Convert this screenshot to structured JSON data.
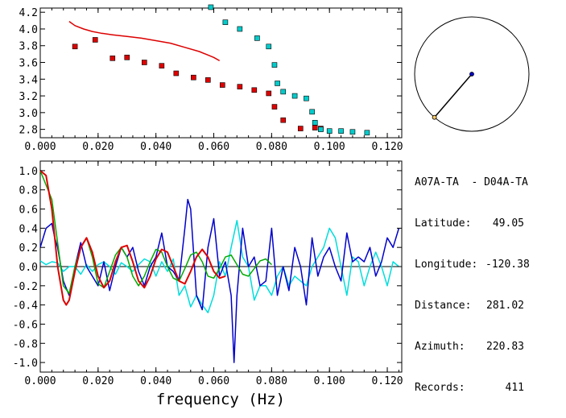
{
  "chart_data": [
    {
      "type": "scatter",
      "xlim": [
        0.0,
        0.125
      ],
      "ylim": [
        2.7,
        4.25
      ],
      "x_ticks": [
        "0.000",
        "0.020",
        "0.040",
        "0.060",
        "0.080",
        "0.100",
        "0.120"
      ],
      "x_tick_values": [
        0.0,
        0.02,
        0.04,
        0.06,
        0.08,
        0.1,
        0.12
      ],
      "y_ticks": [
        "2.8",
        "3.0",
        "3.2",
        "3.4",
        "3.6",
        "3.8",
        "4.0",
        "4.2"
      ],
      "y_tick_values": [
        2.8,
        3.0,
        3.2,
        3.4,
        3.6,
        3.8,
        4.0,
        4.2
      ],
      "series": [
        {
          "color": "#dd0000",
          "kind": "markers",
          "x": [
            0.012,
            0.019,
            0.025,
            0.03,
            0.036,
            0.042,
            0.047,
            0.053,
            0.058,
            0.063,
            0.069,
            0.074,
            0.079,
            0.081,
            0.084,
            0.09,
            0.095,
            0.097
          ],
          "y": [
            3.79,
            3.87,
            3.65,
            3.66,
            3.6,
            3.56,
            3.47,
            3.42,
            3.39,
            3.33,
            3.31,
            3.27,
            3.23,
            3.07,
            2.91,
            2.81,
            2.82,
            2.81
          ]
        },
        {
          "color": "#00cccc",
          "kind": "markers",
          "x": [
            0.059,
            0.064,
            0.069,
            0.075,
            0.079,
            0.081,
            0.082,
            0.084,
            0.088,
            0.092,
            0.094,
            0.095,
            0.097,
            0.1,
            0.104,
            0.108,
            0.113
          ],
          "y": [
            4.26,
            4.08,
            4.0,
            3.89,
            3.79,
            3.57,
            3.35,
            3.25,
            3.2,
            3.17,
            3.01,
            2.88,
            2.8,
            2.78,
            2.78,
            2.77,
            2.76
          ]
        },
        {
          "color": "#dd0000",
          "kind": "line",
          "x": [
            0.01,
            0.012,
            0.015,
            0.018,
            0.021,
            0.025,
            0.03,
            0.035,
            0.04,
            0.045,
            0.05,
            0.055,
            0.06,
            0.062
          ],
          "y": [
            4.09,
            4.04,
            4.0,
            3.97,
            3.95,
            3.93,
            3.91,
            3.89,
            3.86,
            3.83,
            3.78,
            3.73,
            3.66,
            3.62
          ]
        }
      ]
    },
    {
      "type": "line",
      "xlabel": "frequency (Hz)",
      "xlim": [
        0.0,
        0.125
      ],
      "ylim": [
        -1.1,
        1.1
      ],
      "x_ticks": [
        "0.000",
        "0.020",
        "0.040",
        "0.060",
        "0.080",
        "0.100",
        "0.120"
      ],
      "x_tick_values": [
        0.0,
        0.02,
        0.04,
        0.06,
        0.08,
        0.1,
        0.12
      ],
      "y_ticks": [
        "1.0",
        "0.8",
        "0.6",
        "0.4",
        "0.2",
        "0.0",
        "-0.2",
        "-0.4",
        "-0.6",
        "-0.8",
        "-1.0"
      ],
      "y_tick_values": [
        1.0,
        0.8,
        0.6,
        0.4,
        0.2,
        0.0,
        -0.2,
        -0.4,
        -0.6,
        -0.8,
        -1.0
      ],
      "series": [
        {
          "color": "#00dddd",
          "x": [
            0.0,
            0.002,
            0.004,
            0.006,
            0.008,
            0.01,
            0.012,
            0.014,
            0.016,
            0.018,
            0.02,
            0.022,
            0.024,
            0.026,
            0.028,
            0.03,
            0.032,
            0.034,
            0.036,
            0.038,
            0.04,
            0.042,
            0.044,
            0.046,
            0.048,
            0.05,
            0.052,
            0.054,
            0.056,
            0.058,
            0.06,
            0.062,
            0.064,
            0.066,
            0.068,
            0.07,
            0.072,
            0.074,
            0.076,
            0.078,
            0.08,
            0.082,
            0.084,
            0.086,
            0.088,
            0.09,
            0.092,
            0.094,
            0.096,
            0.098,
            0.1,
            0.102,
            0.104,
            0.106,
            0.108,
            0.11,
            0.112,
            0.114,
            0.116,
            0.118,
            0.12,
            0.122,
            0.124
          ],
          "y": [
            0.06,
            0.02,
            0.05,
            0.04,
            -0.05,
            0.0,
            0.0,
            -0.08,
            0.02,
            -0.05,
            0.02,
            0.05,
            0.0,
            -0.08,
            0.04,
            0.0,
            -0.05,
            0.02,
            0.08,
            0.05,
            -0.1,
            0.05,
            -0.05,
            0.08,
            -0.3,
            -0.2,
            -0.42,
            -0.3,
            -0.4,
            -0.48,
            -0.3,
            0.05,
            -0.1,
            0.2,
            0.48,
            0.1,
            0.0,
            -0.35,
            -0.2,
            -0.2,
            -0.3,
            -0.1,
            0.0,
            -0.2,
            -0.1,
            -0.15,
            -0.2,
            0.0,
            0.1,
            0.2,
            0.4,
            0.3,
            0.0,
            -0.3,
            0.1,
            0.05,
            -0.2,
            0.0,
            0.15,
            0.0,
            -0.2,
            0.05,
            0.0
          ]
        },
        {
          "color": "#0000cc",
          "x": [
            0.0,
            0.002,
            0.004,
            0.005,
            0.006,
            0.008,
            0.01,
            0.012,
            0.014,
            0.016,
            0.018,
            0.02,
            0.022,
            0.024,
            0.026,
            0.028,
            0.03,
            0.032,
            0.034,
            0.036,
            0.038,
            0.04,
            0.042,
            0.044,
            0.046,
            0.048,
            0.05,
            0.051,
            0.052,
            0.054,
            0.056,
            0.058,
            0.06,
            0.062,
            0.064,
            0.066,
            0.067,
            0.068,
            0.07,
            0.072,
            0.074,
            0.076,
            0.078,
            0.08,
            0.082,
            0.084,
            0.086,
            0.088,
            0.09,
            0.092,
            0.094,
            0.096,
            0.098,
            0.1,
            0.102,
            0.104,
            0.106,
            0.108,
            0.11,
            0.112,
            0.114,
            0.116,
            0.118,
            0.12,
            0.122,
            0.124
          ],
          "y": [
            0.2,
            0.4,
            0.45,
            0.3,
            0.2,
            -0.15,
            -0.3,
            0.0,
            0.25,
            0.0,
            -0.1,
            -0.2,
            0.05,
            -0.25,
            0.0,
            0.2,
            0.1,
            0.2,
            -0.05,
            -0.2,
            0.0,
            0.1,
            0.35,
            0.0,
            -0.05,
            -0.15,
            0.4,
            0.7,
            0.6,
            -0.3,
            -0.45,
            0.2,
            0.5,
            -0.1,
            0.05,
            -0.3,
            -1.0,
            -0.3,
            0.4,
            0.0,
            0.1,
            -0.2,
            -0.15,
            0.4,
            -0.3,
            0.0,
            -0.25,
            0.2,
            0.0,
            -0.4,
            0.3,
            -0.1,
            0.1,
            0.2,
            0.0,
            -0.15,
            0.35,
            0.05,
            0.1,
            0.05,
            0.2,
            -0.1,
            0.05,
            0.3,
            0.2,
            0.4
          ]
        },
        {
          "color": "#00aa00",
          "x": [
            0.0,
            0.004,
            0.008,
            0.01,
            0.012,
            0.014,
            0.016,
            0.018,
            0.02,
            0.022,
            0.024,
            0.026,
            0.028,
            0.03,
            0.032,
            0.034,
            0.036,
            0.038,
            0.04,
            0.042,
            0.044,
            0.046,
            0.048,
            0.05,
            0.052,
            0.054,
            0.056,
            0.058,
            0.06,
            0.062,
            0.064,
            0.066,
            0.068,
            0.07,
            0.072,
            0.074,
            0.076,
            0.078,
            0.08
          ],
          "y": [
            1.0,
            0.7,
            -0.2,
            -0.28,
            0.0,
            0.2,
            0.3,
            0.1,
            -0.18,
            -0.22,
            -0.05,
            0.12,
            0.2,
            0.1,
            -0.1,
            -0.2,
            -0.1,
            0.05,
            0.18,
            0.15,
            0.0,
            -0.12,
            -0.15,
            -0.02,
            0.12,
            0.15,
            0.05,
            -0.1,
            -0.12,
            -0.02,
            0.1,
            0.12,
            0.02,
            -0.08,
            -0.1,
            -0.02,
            0.06,
            0.08,
            0.02
          ]
        },
        {
          "color": "#dd0000",
          "x": [
            0.0,
            0.002,
            0.004,
            0.006,
            0.008,
            0.009,
            0.01,
            0.012,
            0.014,
            0.016,
            0.018,
            0.02,
            0.022,
            0.024,
            0.026,
            0.028,
            0.03,
            0.032,
            0.034,
            0.036,
            0.038,
            0.04,
            0.042,
            0.044,
            0.046,
            0.048,
            0.05,
            0.052,
            0.054,
            0.056,
            0.058,
            0.06,
            0.062,
            0.064
          ],
          "y": [
            1.0,
            0.95,
            0.6,
            0.0,
            -0.35,
            -0.4,
            -0.35,
            -0.05,
            0.2,
            0.3,
            0.15,
            -0.1,
            -0.22,
            -0.15,
            0.05,
            0.2,
            0.22,
            0.05,
            -0.15,
            -0.22,
            -0.1,
            0.08,
            0.18,
            0.15,
            0.0,
            -0.15,
            -0.18,
            -0.05,
            0.1,
            0.18,
            0.1,
            -0.05,
            -0.12,
            -0.1
          ]
        }
      ]
    }
  ],
  "inset": {
    "azimuth_deg": 220.83,
    "center_marker_color": "#0000cc",
    "edge_marker_color": "#ffcc66"
  },
  "info": {
    "title": "A07A-TA  - D04A-TA",
    "lat_label": "Latitude:",
    "lat_value": "49.05",
    "lon_label": "Longitude:",
    "lon_value": "-120.38",
    "dist_label": "Distance:",
    "dist_value": "281.02",
    "az_label": "Azimuth:",
    "az_value": "220.83",
    "rec_label": "Records:",
    "rec_value": "411"
  }
}
